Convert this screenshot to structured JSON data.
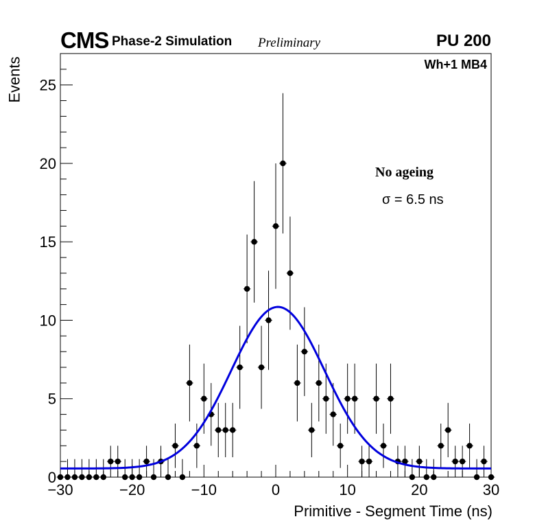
{
  "header": {
    "experiment": "CMS",
    "subtitle": "Phase-2 Simulation",
    "status": "Preliminary",
    "pileup": "PU 200",
    "region": "Wh+1 MB4"
  },
  "legend": {
    "scenario": "No ageing",
    "sigma": "σ = 6.5 ns"
  },
  "colors": {
    "fit": "#0000dd",
    "points": "#000000",
    "axes": "#000000"
  },
  "chart_data": {
    "type": "scatter",
    "title": "",
    "xlabel": "Primitive - Segment Time (ns)",
    "ylabel": "Events",
    "xlim": [
      -30,
      30
    ],
    "ylim": [
      0,
      27
    ],
    "xticks": [
      -30,
      -20,
      -10,
      0,
      10,
      20,
      30
    ],
    "yticks": [
      0,
      5,
      10,
      15,
      20,
      25
    ],
    "bin_width": 1,
    "series": [
      {
        "name": "Events",
        "style": "points-with-errorbars",
        "x": [
          -30,
          -29,
          -28,
          -27,
          -26,
          -25,
          -24,
          -23,
          -22,
          -21,
          -20,
          -19,
          -18,
          -17,
          -16,
          -15,
          -14,
          -13,
          -12,
          -11,
          -10,
          -9,
          -8,
          -7,
          -6,
          -5,
          -4,
          -3,
          -2,
          -1,
          0,
          1,
          2,
          3,
          4,
          5,
          6,
          7,
          8,
          9,
          10,
          11,
          12,
          13,
          14,
          15,
          16,
          17,
          18,
          19,
          20,
          21,
          22,
          23,
          24,
          25,
          26,
          27,
          28,
          29,
          30
        ],
        "y": [
          0,
          0,
          0,
          0,
          0,
          0,
          0,
          1,
          1,
          0,
          0,
          0,
          1,
          0,
          1,
          0,
          2,
          0,
          6,
          2,
          5,
          4,
          3,
          3,
          3,
          7,
          12,
          15,
          7,
          10,
          16,
          20,
          13,
          6,
          8,
          3,
          6,
          5,
          4,
          2,
          5,
          5,
          1,
          1,
          5,
          2,
          5,
          1,
          1,
          0,
          1,
          0,
          0,
          2,
          3,
          1,
          1,
          2,
          0,
          1,
          0
        ]
      },
      {
        "name": "Gaussian fit",
        "style": "line",
        "constant": 0.55,
        "amplitude": 10.3,
        "mean": 0.3,
        "sigma": 6.5
      }
    ]
  }
}
